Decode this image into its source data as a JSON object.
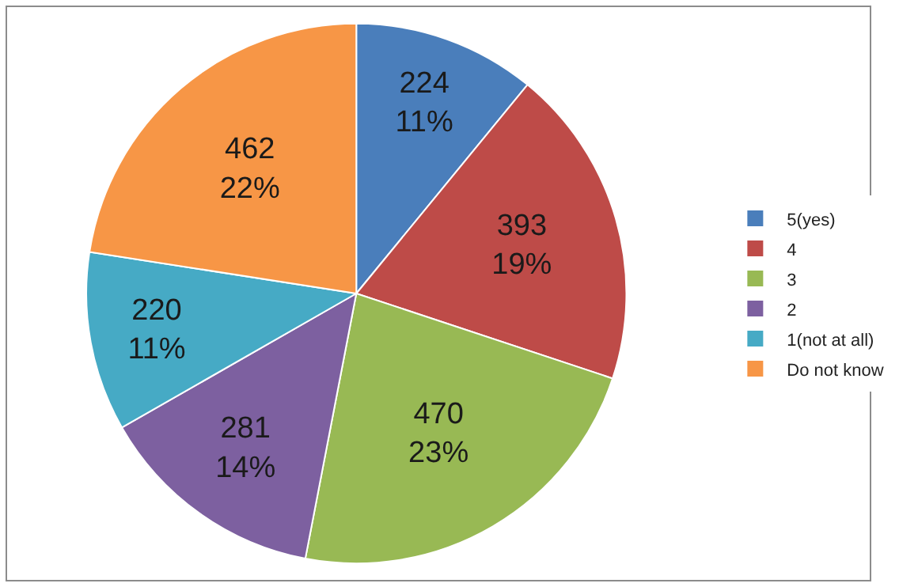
{
  "chart_data": {
    "type": "pie",
    "categories": [
      "5(yes)",
      "4",
      "3",
      "2",
      "1(not at all)",
      "Do not know"
    ],
    "values": [
      224,
      393,
      470,
      281,
      220,
      462
    ],
    "colors": [
      "#4a7ebb",
      "#be4b48",
      "#98b954",
      "#7d60a0",
      "#46aac5",
      "#f79646"
    ],
    "value_labels": [
      "224\n11%",
      "393\n19%",
      "470\n23%",
      "281\n14%",
      "220\n11%",
      "462\n22%"
    ],
    "legend": "right"
  }
}
